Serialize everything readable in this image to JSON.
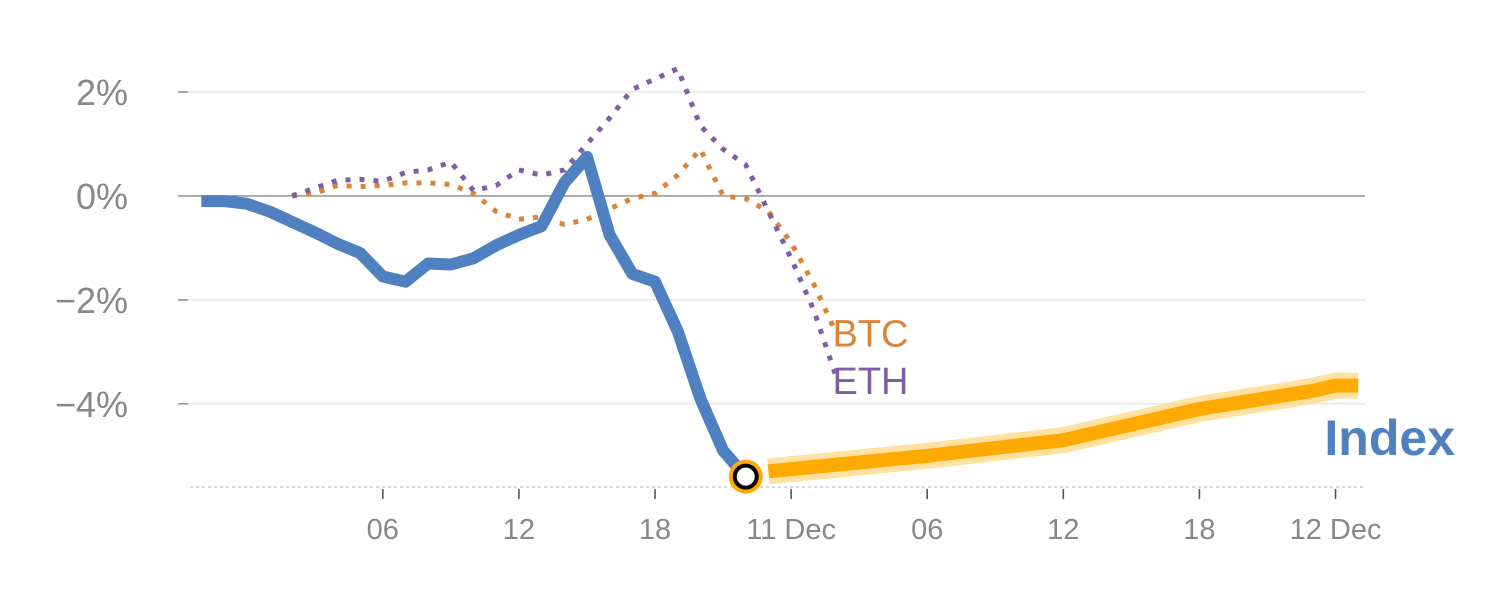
{
  "chart_data": {
    "type": "line",
    "title": "",
    "xlabel": "",
    "ylabel": "",
    "ylim": [
      -5.6,
      3.0
    ],
    "grid": true,
    "y_ticks": [
      {
        "value": 2,
        "label": "2%"
      },
      {
        "value": 0,
        "label": "0%"
      },
      {
        "value": -2,
        "label": "−2%"
      },
      {
        "value": -4,
        "label": "−4%"
      }
    ],
    "x_ticks": [
      {
        "x": 4,
        "label": "06"
      },
      {
        "x": 10,
        "label": "12"
      },
      {
        "x": 16,
        "label": "18"
      },
      {
        "x": 22,
        "label": "11 Dec"
      },
      {
        "x": 28,
        "label": "06"
      },
      {
        "x": 34,
        "label": "12"
      },
      {
        "x": 40,
        "label": "18"
      },
      {
        "x": 46,
        "label": "12 Dec"
      }
    ],
    "xlim": [
      -4.5,
      47.3
    ],
    "series": [
      {
        "name": "BTC",
        "color": "#d9843a",
        "style": "dotted",
        "points": [
          [
            0,
            0.0
          ],
          [
            1,
            0.05
          ],
          [
            2,
            0.2
          ],
          [
            3,
            0.18
          ],
          [
            4,
            0.2
          ],
          [
            5,
            0.25
          ],
          [
            6,
            0.25
          ],
          [
            7,
            0.22
          ],
          [
            8,
            0.05
          ],
          [
            9,
            -0.3
          ],
          [
            10,
            -0.45
          ],
          [
            11,
            -0.4
          ],
          [
            12,
            -0.55
          ],
          [
            13,
            -0.45
          ],
          [
            14,
            -0.25
          ],
          [
            15,
            -0.05
          ],
          [
            16,
            0.05
          ],
          [
            17,
            0.4
          ],
          [
            18,
            0.9
          ],
          [
            19,
            0.0
          ],
          [
            20,
            -0.05
          ],
          [
            21,
            -0.3
          ],
          [
            22,
            -0.9
          ],
          [
            23,
            -1.7
          ],
          [
            24,
            -2.65
          ]
        ]
      },
      {
        "name": "ETH",
        "color": "#7e5fa3",
        "style": "dotted",
        "points": [
          [
            0,
            0.0
          ],
          [
            1,
            0.15
          ],
          [
            2,
            0.3
          ],
          [
            3,
            0.32
          ],
          [
            4,
            0.28
          ],
          [
            5,
            0.45
          ],
          [
            6,
            0.5
          ],
          [
            7,
            0.65
          ],
          [
            8,
            0.1
          ],
          [
            9,
            0.2
          ],
          [
            10,
            0.5
          ],
          [
            11,
            0.4
          ],
          [
            12,
            0.5
          ],
          [
            13,
            1.0
          ],
          [
            14,
            1.5
          ],
          [
            15,
            2.05
          ],
          [
            16,
            2.25
          ],
          [
            17,
            2.45
          ],
          [
            18,
            1.35
          ],
          [
            19,
            0.9
          ],
          [
            20,
            0.6
          ],
          [
            21,
            -0.3
          ],
          [
            22,
            -1.2
          ],
          [
            23,
            -2.2
          ],
          [
            24,
            -3.5
          ]
        ]
      },
      {
        "name": "Index",
        "color": "#4f80c0",
        "style": "solid",
        "points": [
          [
            -4,
            -0.1
          ],
          [
            -3,
            -0.1
          ],
          [
            -2,
            -0.15
          ],
          [
            -1,
            -0.3
          ],
          [
            0,
            -0.5
          ],
          [
            1,
            -0.7
          ],
          [
            2,
            -0.92
          ],
          [
            3,
            -1.1
          ],
          [
            4,
            -1.55
          ],
          [
            5,
            -1.65
          ],
          [
            6,
            -1.3
          ],
          [
            7,
            -1.32
          ],
          [
            8,
            -1.2
          ],
          [
            9,
            -0.95
          ],
          [
            10,
            -0.75
          ],
          [
            11,
            -0.58
          ],
          [
            12,
            0.25
          ],
          [
            13,
            0.75
          ],
          [
            14,
            -0.75
          ],
          [
            15,
            -1.5
          ],
          [
            16,
            -1.65
          ],
          [
            17,
            -2.6
          ],
          [
            18,
            -3.9
          ],
          [
            19,
            -4.9
          ],
          [
            20,
            -5.4
          ]
        ]
      },
      {
        "name": "",
        "color": "#ffaa00",
        "style": "highlight",
        "points": [
          [
            21,
            -5.3
          ],
          [
            28,
            -5.0
          ],
          [
            34,
            -4.7
          ],
          [
            40,
            -4.1
          ],
          [
            45,
            -3.75
          ],
          [
            46,
            -3.65
          ],
          [
            47,
            -3.65
          ]
        ]
      }
    ],
    "marker": {
      "x": 20,
      "y": -5.4,
      "fill": "#ffaa00",
      "stroke": "#000000"
    },
    "labels": {
      "btc": "BTC",
      "eth": "ETH",
      "index": "Index"
    },
    "colors": {
      "grid": "#e6e6e6",
      "zero_line": "#888888",
      "axis_text": "#888888",
      "highlight": "#ffaa00",
      "highlight_glow": "#ffd98a"
    }
  }
}
